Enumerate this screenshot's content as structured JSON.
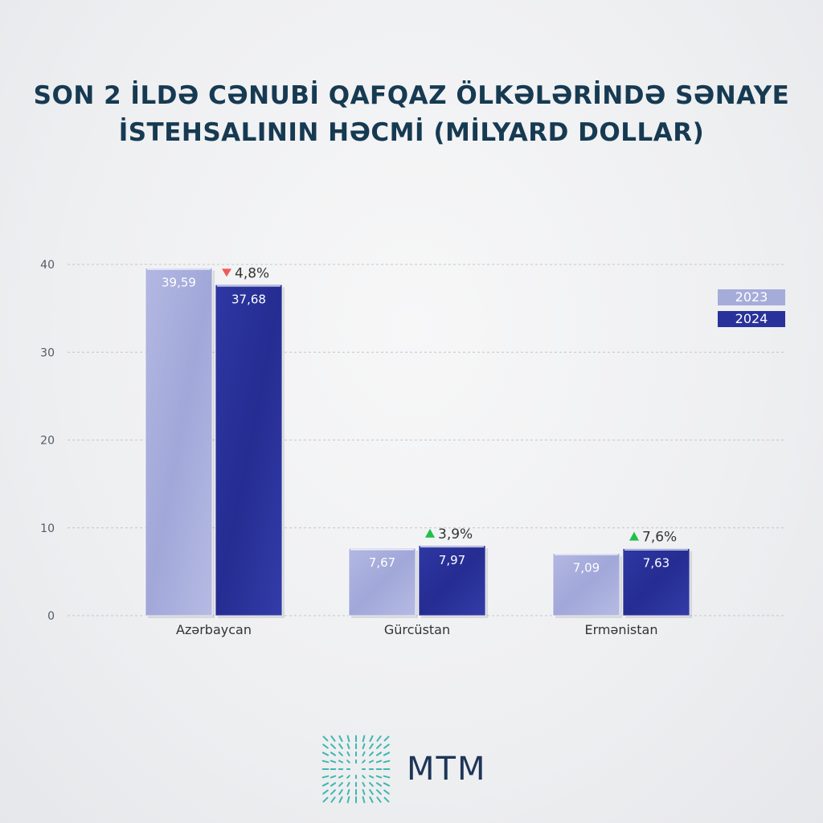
{
  "title_lines": [
    "SON 2 İLDƏ CƏNUBİ QAFQAZ ÖLKƏLƏRİNDƏ SƏNAYE",
    "İSTEHSALININ HƏCMİ (MİLYARD DOLLAR)"
  ],
  "chart_data": {
    "type": "bar",
    "title": "SON 2 İLDƏ CƏNUBİ QAFQAZ ÖLKƏLƏRİNDƏ SƏNAYE İSTEHSALININ HƏCMİ (MİLYARD DOLLAR)",
    "categories": [
      "Azərbaycan",
      "Gürcüstan",
      "Ermənistan"
    ],
    "series": [
      {
        "name": "2023",
        "values": [
          39.59,
          7.67,
          7.09
        ],
        "labels": [
          "39,59",
          "7,67",
          "7,09"
        ],
        "color": "#a6acda"
      },
      {
        "name": "2024",
        "values": [
          37.68,
          7.97,
          7.63
        ],
        "labels": [
          "37,68",
          "7,97",
          "7,63"
        ],
        "color": "#29329a"
      }
    ],
    "changes": [
      {
        "label": "4,8%",
        "direction": "down",
        "color": "#f05a5a"
      },
      {
        "label": "3,9%",
        "direction": "up",
        "color": "#22c04a"
      },
      {
        "label": "7,6%",
        "direction": "up",
        "color": "#22c04a"
      }
    ],
    "ylim": [
      0,
      40
    ],
    "yticks": [
      "0",
      "10",
      "20",
      "30",
      "40"
    ],
    "ytick_values": [
      0,
      10,
      20,
      30,
      40
    ],
    "xlabel": "",
    "ylabel": "",
    "grid": true,
    "legend_position": "top-right"
  },
  "logo": {
    "text": "MTM",
    "color": "#1c3557",
    "accent": "#3fb7b0"
  }
}
